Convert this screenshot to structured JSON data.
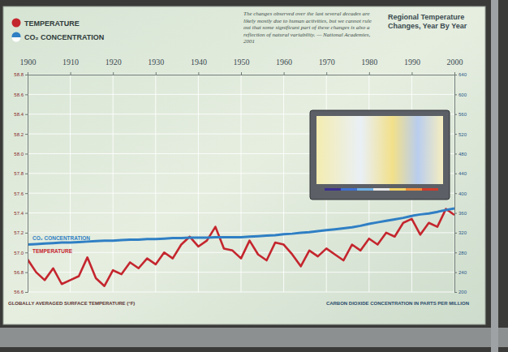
{
  "chart_data": {
    "type": "line",
    "title": "Regional Temperature Changes, Year By Year",
    "annotations": [
      "The changes observed over the last several decades are likely mostly due to human activities, but we cannot rule out that some significant part of these changes is also a reflection of natural variability. — National Academies, 2001"
    ],
    "ylabel": "GLOBALLY AVERAGED SURFACE TEMPERATURE (°F)",
    "y2label": "CARBON DIOXIDE CONCENTRATION IN PARTS PER MILLION",
    "x": [
      1900,
      1902,
      1904,
      1906,
      1908,
      1910,
      1912,
      1914,
      1916,
      1918,
      1920,
      1922,
      1924,
      1926,
      1928,
      1930,
      1932,
      1934,
      1936,
      1938,
      1940,
      1942,
      1944,
      1946,
      1948,
      1950,
      1952,
      1954,
      1956,
      1958,
      1960,
      1962,
      1964,
      1966,
      1968,
      1970,
      1972,
      1974,
      1976,
      1978,
      1980,
      1982,
      1984,
      1986,
      1988,
      1990,
      1992,
      1994,
      1996,
      1998,
      2000
    ],
    "xlim": [
      1900,
      2000
    ],
    "xticks": [
      1900,
      1910,
      1920,
      1930,
      1940,
      1950,
      1960,
      1970,
      1980,
      1990,
      2000
    ],
    "ylim": [
      56.6,
      58.8
    ],
    "yticks": [
      56.6,
      56.8,
      {
        "value": 57,
        "label": "57.0"
      },
      57.2,
      57.4,
      57.6,
      57.8,
      {
        "value": 58,
        "label": "58.0"
      },
      58.2,
      58.4,
      58.6,
      58.8
    ],
    "y2lim": [
      200,
      640
    ],
    "y2ticks": [
      200,
      240,
      280,
      320,
      360,
      400,
      440,
      480,
      520,
      560,
      600,
      640
    ],
    "series": [
      {
        "name": "TEMPERATURE",
        "color": "#c4262e",
        "values": [
          56.93,
          56.8,
          56.72,
          56.84,
          56.68,
          56.72,
          56.76,
          56.95,
          56.74,
          56.66,
          56.82,
          56.78,
          56.9,
          56.84,
          56.94,
          56.88,
          57.0,
          56.94,
          57.08,
          57.16,
          57.06,
          57.12,
          57.26,
          57.04,
          57.02,
          56.94,
          57.12,
          56.98,
          56.92,
          57.1,
          57.08,
          56.98,
          56.86,
          57.02,
          56.96,
          57.04,
          56.98,
          56.92,
          57.08,
          57.02,
          57.14,
          57.08,
          57.2,
          57.16,
          57.3,
          57.34,
          57.18,
          57.3,
          57.26,
          57.44,
          57.38
        ]
      },
      {
        "name": "CO₂ CONCENTRATION",
        "color": "#2f7fc4",
        "axis": "y2",
        "values": [
          296,
          297,
          298,
          299,
          300,
          300,
          301,
          302,
          303,
          304,
          304,
          305,
          306,
          306,
          307,
          307,
          308,
          309,
          309,
          310,
          310,
          310,
          311,
          311,
          311,
          311,
          312,
          313,
          314,
          315,
          317,
          318,
          320,
          321,
          323,
          325,
          327,
          329,
          331,
          334,
          338,
          341,
          344,
          347,
          350,
          354,
          357,
          359,
          362,
          366,
          369
        ]
      }
    ],
    "legend": "upper left",
    "grid": true
  }
}
